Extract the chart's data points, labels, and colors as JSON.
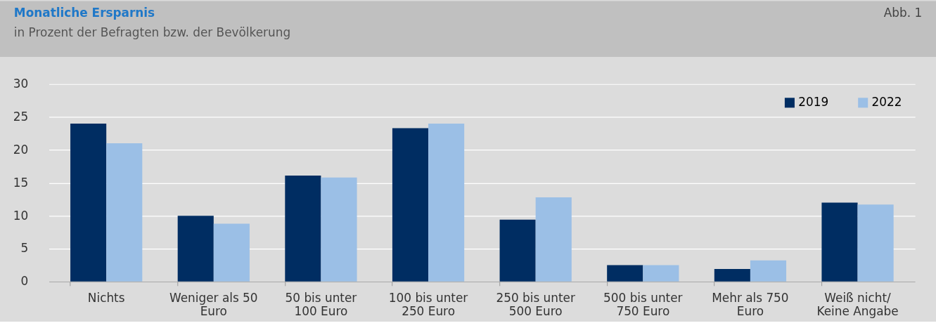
{
  "chart_data": {
    "type": "bar",
    "title": "Monatliche Ersparnis",
    "subtitle": "in Prozent der Befragten bzw. der Bevölkerung",
    "annotations": [
      "Abb. 1"
    ],
    "categories": [
      "Nichts",
      "Weniger als 50 Euro",
      "50 bis unter 100 Euro",
      "100 bis unter 250 Euro",
      "250 bis unter 500 Euro",
      "500 bis unter 750 Euro",
      "Mehr als 750 Euro",
      "Weiß nicht/Keine Angabe"
    ],
    "series": [
      {
        "name": "2019",
        "color": "#002d62",
        "values": [
          24,
          10,
          16.1,
          23.3,
          9.4,
          2.5,
          1.9,
          12
        ]
      },
      {
        "name": "2022",
        "color": "#9bbfe6",
        "values": [
          21,
          8.8,
          15.8,
          24,
          12.8,
          2.5,
          3.2,
          11.7
        ]
      }
    ],
    "ylim": [
      0,
      30
    ],
    "yticks": [
      0,
      5,
      10,
      15,
      20,
      25,
      30
    ],
    "grid": "y",
    "legend": "top right"
  }
}
